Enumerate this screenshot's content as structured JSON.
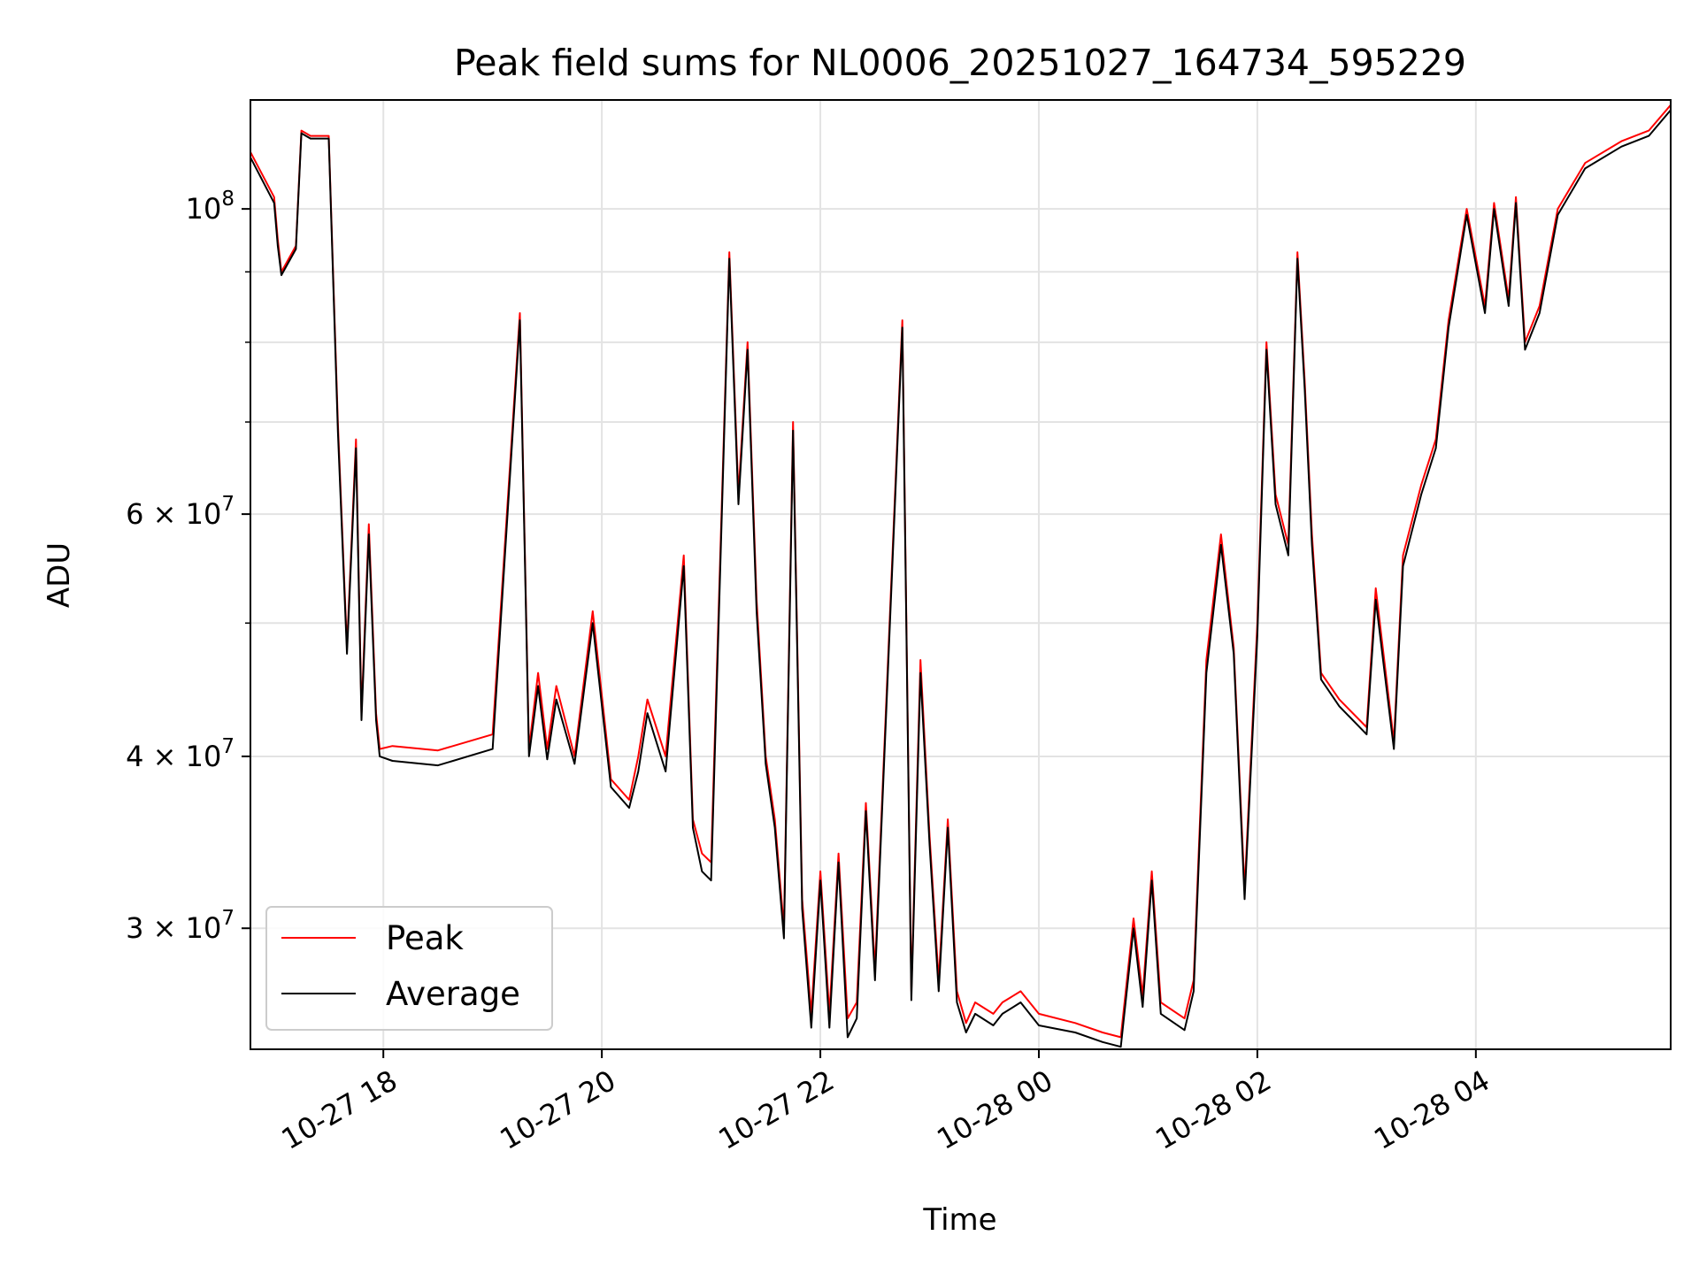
{
  "chart_data": {
    "type": "line",
    "title": "Peak field sums for NL0006_20251027_164734_595229",
    "xlabel": "Time",
    "ylabel": "ADU",
    "y_scale": "log",
    "grid": true,
    "legend_position": "bottom-left",
    "xlim": [
      "2025-10-27 16:47",
      "2025-10-28 05:47"
    ],
    "ylim": [
      24500000,
      120000000
    ],
    "x_ticks": [
      {
        "value": "2025-10-27 18:00",
        "label": "10-27 18"
      },
      {
        "value": "2025-10-27 20:00",
        "label": "10-27 20"
      },
      {
        "value": "2025-10-27 22:00",
        "label": "10-27 22"
      },
      {
        "value": "2025-10-28 00:00",
        "label": "10-28 00"
      },
      {
        "value": "2025-10-28 02:00",
        "label": "10-28 02"
      },
      {
        "value": "2025-10-28 04:00",
        "label": "10-28 04"
      }
    ],
    "y_ticks": [
      {
        "value": 100000000,
        "base": "10",
        "exp": "8"
      },
      {
        "value": 60000000,
        "base": "6 × 10",
        "exp": "7"
      },
      {
        "value": 40000000,
        "base": "4 × 10",
        "exp": "7"
      },
      {
        "value": 30000000,
        "base": "3 × 10",
        "exp": "7"
      }
    ],
    "y_minor_ticks": [
      50000000,
      70000000,
      80000000,
      90000000
    ],
    "x": [
      "2025-10-27 16:47",
      "2025-10-27 17:00",
      "2025-10-27 17:02",
      "2025-10-27 17:04",
      "2025-10-27 17:12",
      "2025-10-27 17:15",
      "2025-10-27 17:20",
      "2025-10-27 17:30",
      "2025-10-27 17:35",
      "2025-10-27 17:40",
      "2025-10-27 17:45",
      "2025-10-27 17:48",
      "2025-10-27 17:52",
      "2025-10-27 17:56",
      "2025-10-27 17:58",
      "2025-10-27 18:05",
      "2025-10-27 18:30",
      "2025-10-27 19:00",
      "2025-10-27 19:15",
      "2025-10-27 19:20",
      "2025-10-27 19:25",
      "2025-10-27 19:30",
      "2025-10-27 19:35",
      "2025-10-27 19:45",
      "2025-10-27 19:55",
      "2025-10-27 20:05",
      "2025-10-27 20:15",
      "2025-10-27 20:20",
      "2025-10-27 20:25",
      "2025-10-27 20:35",
      "2025-10-27 20:45",
      "2025-10-27 20:50",
      "2025-10-27 20:55",
      "2025-10-27 21:00",
      "2025-10-27 21:10",
      "2025-10-27 21:15",
      "2025-10-27 21:20",
      "2025-10-27 21:25",
      "2025-10-27 21:30",
      "2025-10-27 21:35",
      "2025-10-27 21:40",
      "2025-10-27 21:45",
      "2025-10-27 21:50",
      "2025-10-27 21:55",
      "2025-10-27 22:00",
      "2025-10-27 22:05",
      "2025-10-27 22:10",
      "2025-10-27 22:15",
      "2025-10-27 22:20",
      "2025-10-27 22:25",
      "2025-10-27 22:30",
      "2025-10-27 22:45",
      "2025-10-27 22:50",
      "2025-10-27 22:55",
      "2025-10-27 23:00",
      "2025-10-27 23:05",
      "2025-10-27 23:10",
      "2025-10-27 23:15",
      "2025-10-27 23:20",
      "2025-10-27 23:25",
      "2025-10-27 23:35",
      "2025-10-27 23:40",
      "2025-10-27 23:50",
      "2025-10-28 00:00",
      "2025-10-28 00:20",
      "2025-10-28 00:35",
      "2025-10-28 00:45",
      "2025-10-28 00:52",
      "2025-10-28 00:57",
      "2025-10-28 01:02",
      "2025-10-28 01:07",
      "2025-10-28 01:20",
      "2025-10-28 01:25",
      "2025-10-28 01:32",
      "2025-10-28 01:40",
      "2025-10-28 01:47",
      "2025-10-28 01:53",
      "2025-10-28 02:00",
      "2025-10-28 02:05",
      "2025-10-28 02:10",
      "2025-10-28 02:17",
      "2025-10-28 02:22",
      "2025-10-28 02:26",
      "2025-10-28 02:30",
      "2025-10-28 02:35",
      "2025-10-28 02:45",
      "2025-10-28 03:00",
      "2025-10-28 03:05",
      "2025-10-28 03:15",
      "2025-10-28 03:20",
      "2025-10-28 03:30",
      "2025-10-28 03:38",
      "2025-10-28 03:45",
      "2025-10-28 03:55",
      "2025-10-28 04:05",
      "2025-10-28 04:10",
      "2025-10-28 04:18",
      "2025-10-28 04:22",
      "2025-10-28 04:27",
      "2025-10-28 04:35",
      "2025-10-28 04:45",
      "2025-10-28 05:00",
      "2025-10-28 05:20",
      "2025-10-28 05:35",
      "2025-10-28 05:47"
    ],
    "series": [
      {
        "name": "Peak",
        "color": "#ff0000",
        "values": [
          110000000,
          102000000,
          95000000,
          90000000,
          94000000,
          114000000,
          113000000,
          113000000,
          70000000,
          48000000,
          68000000,
          43000000,
          59000000,
          43000000,
          40500000,
          40700000,
          40400000,
          41500000,
          84000000,
          40500000,
          46000000,
          40500000,
          45000000,
          40000000,
          51000000,
          38500000,
          37200000,
          40000000,
          44000000,
          40000000,
          56000000,
          36000000,
          34000000,
          33500000,
          93000000,
          62000000,
          80000000,
          52000000,
          40000000,
          36000000,
          30000000,
          70000000,
          31500000,
          26000000,
          33000000,
          26000000,
          34000000,
          25800000,
          26500000,
          37000000,
          28000000,
          83000000,
          27000000,
          47000000,
          35000000,
          27500000,
          36000000,
          27000000,
          25600000,
          26500000,
          26000000,
          26500000,
          27000000,
          26000000,
          25600000,
          25200000,
          25000000,
          30500000,
          26800000,
          33000000,
          26500000,
          25800000,
          27500000,
          47000000,
          58000000,
          48000000,
          32000000,
          50000000,
          80000000,
          62000000,
          57000000,
          93000000,
          75000000,
          58000000,
          46000000,
          44000000,
          42000000,
          53000000,
          41000000,
          56000000,
          63000000,
          68000000,
          83000000,
          100000000,
          85000000,
          101000000,
          86000000,
          102000000,
          80000000,
          85000000,
          100000000,
          108000000,
          112000000,
          114000000,
          119000000
        ]
      },
      {
        "name": "Average",
        "color": "#000000",
        "values": [
          109000000,
          101000000,
          94000000,
          89500000,
          93500000,
          113500000,
          112500000,
          112500000,
          69000000,
          47500000,
          67000000,
          42500000,
          58000000,
          42500000,
          40000000,
          39700000,
          39400000,
          40500000,
          83000000,
          40000000,
          45000000,
          39800000,
          44000000,
          39500000,
          50000000,
          38000000,
          36700000,
          39000000,
          43000000,
          39000000,
          55000000,
          35500000,
          33000000,
          32500000,
          92000000,
          61000000,
          79000000,
          51000000,
          39500000,
          35500000,
          29500000,
          69000000,
          31000000,
          25400000,
          32500000,
          25400000,
          33500000,
          25000000,
          25800000,
          36500000,
          27500000,
          82000000,
          26600000,
          46000000,
          34500000,
          27000000,
          35500000,
          26500000,
          25200000,
          26000000,
          25500000,
          26000000,
          26500000,
          25500000,
          25200000,
          24800000,
          24600000,
          30000000,
          26300000,
          32500000,
          26000000,
          25300000,
          27000000,
          46000000,
          57000000,
          47500000,
          31500000,
          49000000,
          79000000,
          61000000,
          56000000,
          92000000,
          74000000,
          57000000,
          45500000,
          43500000,
          41500000,
          52000000,
          40500000,
          55000000,
          62000000,
          67000000,
          82000000,
          99000000,
          84000000,
          100000000,
          85000000,
          101000000,
          79000000,
          84000000,
          99000000,
          107000000,
          111000000,
          113000000,
          118000000
        ]
      }
    ]
  }
}
